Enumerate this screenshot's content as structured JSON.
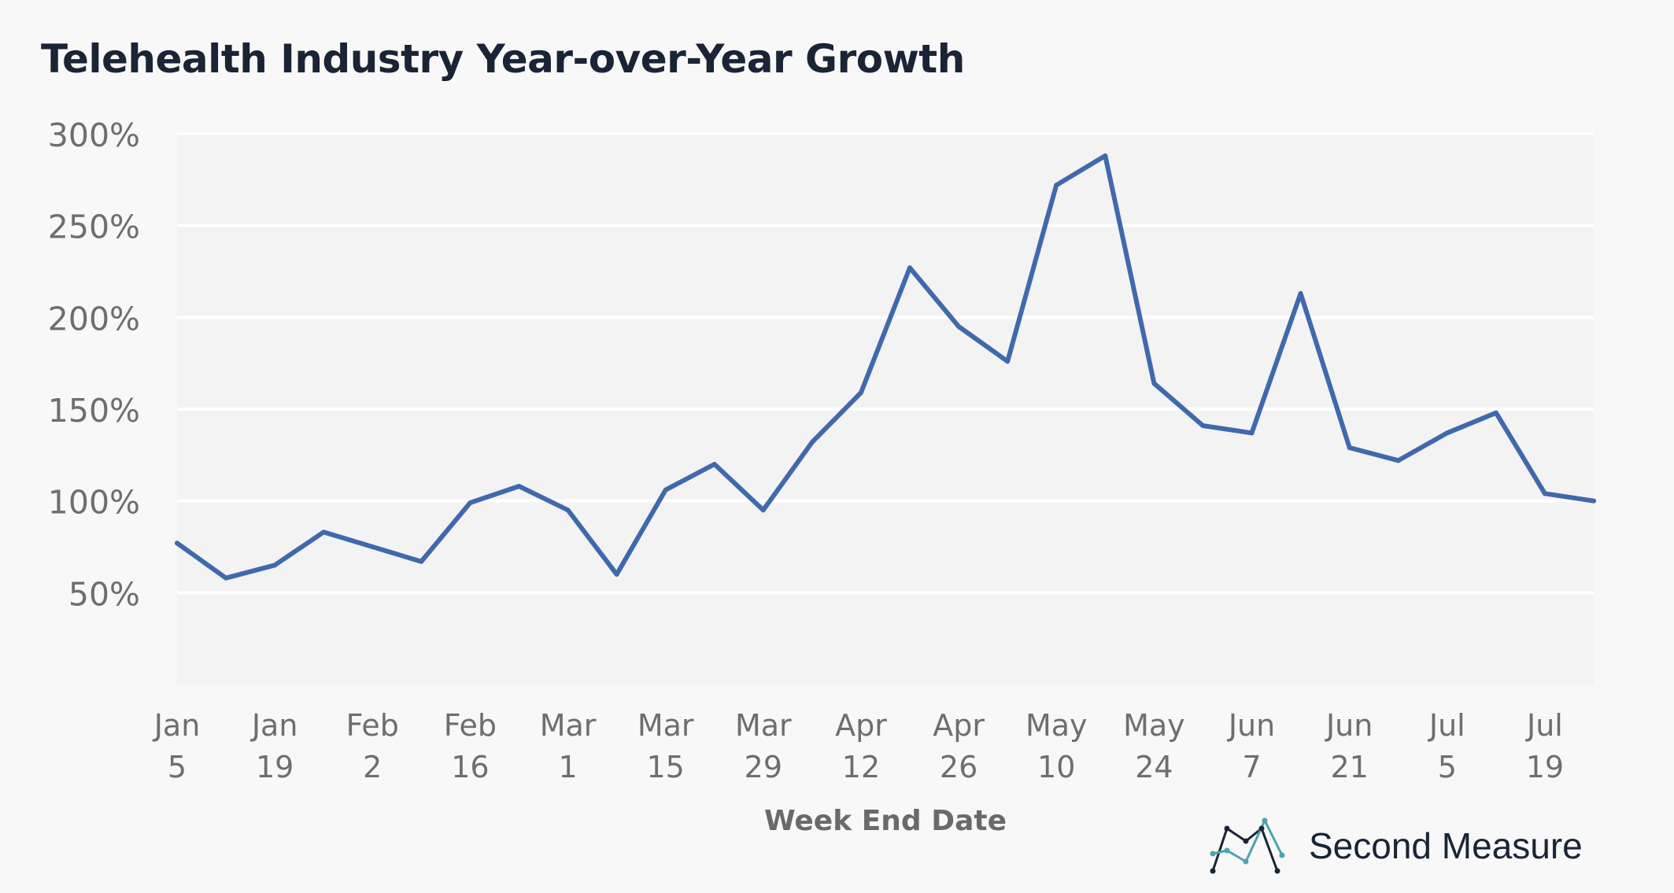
{
  "title": "Telehealth Industry Year-over-Year Growth",
  "brand": {
    "name": "Second Measure",
    "logo_icon": "line-chart-logo-icon"
  },
  "colors": {
    "line": "#4069ad",
    "plot_bg": "#f3f3f3",
    "grid": "#ffffff",
    "logo_dark": "#1a2436",
    "logo_accent": "#4ba3b0"
  },
  "chart_data": {
    "type": "line",
    "title": "Telehealth Industry Year-over-Year Growth",
    "xlabel": "Week End Date",
    "ylabel": "",
    "ylim": [
      0,
      300
    ],
    "yticks": [
      "300%",
      "250%",
      "200%",
      "150%",
      "100%",
      "50%"
    ],
    "ytick_values": [
      300,
      250,
      200,
      150,
      100,
      50
    ],
    "xtick_labels": [
      [
        "Jan",
        "5"
      ],
      [
        "Jan",
        "19"
      ],
      [
        "Feb",
        "2"
      ],
      [
        "Feb",
        "16"
      ],
      [
        "Mar",
        "1"
      ],
      [
        "Mar",
        "15"
      ],
      [
        "Mar",
        "29"
      ],
      [
        "Apr",
        "12"
      ],
      [
        "Apr",
        "26"
      ],
      [
        "May",
        "10"
      ],
      [
        "May",
        "24"
      ],
      [
        "Jun",
        "7"
      ],
      [
        "Jun",
        "21"
      ],
      [
        "Jul",
        "5"
      ],
      [
        "Jul",
        "19"
      ]
    ],
    "grid": true,
    "legend": "none",
    "x": [
      "Jan 5",
      "Jan 12",
      "Jan 19",
      "Jan 26",
      "Feb 2",
      "Feb 9",
      "Feb 16",
      "Feb 23",
      "Mar 1",
      "Mar 8",
      "Mar 15",
      "Mar 22",
      "Mar 29",
      "Apr 5",
      "Apr 12",
      "Apr 19",
      "Apr 26",
      "May 3",
      "May 10",
      "May 17",
      "May 24",
      "May 31",
      "Jun 7",
      "Jun 14",
      "Jun 21",
      "Jun 28",
      "Jul 5",
      "Jul 12",
      "Jul 19",
      "Jul 26"
    ],
    "series": [
      {
        "values": [
          77,
          58,
          65,
          83,
          75,
          67,
          99,
          108,
          95,
          60,
          106,
          120,
          95,
          132,
          159,
          227,
          195,
          176,
          272,
          288,
          164,
          141,
          137,
          213,
          129,
          122,
          137,
          148,
          104,
          100
        ]
      }
    ]
  }
}
